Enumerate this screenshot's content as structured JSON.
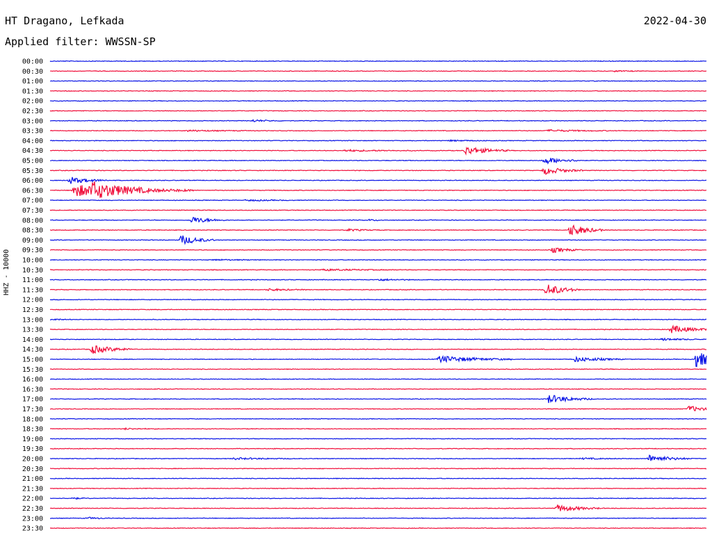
{
  "header": {
    "station": "HT Dragano, Lefkada",
    "date": "2022-04-30",
    "filter": "Applied filter: WWSSN-SP"
  },
  "colors": {
    "blue": "#0a14e6",
    "red": "#f0103c",
    "background": "#ffffff"
  },
  "chart_data": {
    "type": "line",
    "title": "HT Dragano, Lefkada",
    "subtitle": "Applied filter: WWSSN-SP",
    "ylabel": "HHZ - 10000",
    "xlabel": "",
    "grid": false,
    "minutes_per_line": 30,
    "series_colors": [
      "#0a14e6",
      "#f0103c"
    ],
    "trace_labels": [
      "00:00",
      "00:30",
      "01:00",
      "01:30",
      "02:00",
      "02:30",
      "03:00",
      "03:30",
      "04:00",
      "04:30",
      "05:00",
      "05:30",
      "06:00",
      "06:30",
      "07:00",
      "07:30",
      "08:00",
      "08:30",
      "09:00",
      "09:30",
      "10:00",
      "10:30",
      "11:00",
      "11:30",
      "12:00",
      "12:30",
      "13:00",
      "13:30",
      "14:00",
      "14:30",
      "15:00",
      "15:30",
      "16:00",
      "16:30",
      "17:00",
      "17:30",
      "18:00",
      "18:30",
      "19:00",
      "19:30",
      "20:00",
      "20:30",
      "21:00",
      "21:30",
      "22:00",
      "22:30",
      "23:00",
      "23:30"
    ],
    "events": [
      {
        "trace": 1,
        "minute": 25.8,
        "amplitude": 0.3,
        "duration": 0.6
      },
      {
        "trace": 6,
        "minute": 9.3,
        "amplitude": 0.6,
        "duration": 0.6
      },
      {
        "trace": 7,
        "minute": 6.3,
        "amplitude": 0.4,
        "duration": 1.2
      },
      {
        "trace": 7,
        "minute": 22.8,
        "amplitude": 0.5,
        "duration": 1.4
      },
      {
        "trace": 8,
        "minute": 18.3,
        "amplitude": 0.3,
        "duration": 1.0
      },
      {
        "trace": 9,
        "minute": 19.0,
        "amplitude": 2.5,
        "duration": 0.9
      },
      {
        "trace": 9,
        "minute": 13.5,
        "amplitude": 0.5,
        "duration": 1.5
      },
      {
        "trace": 10,
        "minute": 22.6,
        "amplitude": 2.0,
        "duration": 0.8
      },
      {
        "trace": 11,
        "minute": 22.6,
        "amplitude": 2.2,
        "duration": 0.8
      },
      {
        "trace": 12,
        "minute": 0.9,
        "amplitude": 2.0,
        "duration": 0.8
      },
      {
        "trace": 13,
        "minute": 1.1,
        "amplitude": 3.5,
        "duration": 2.5
      },
      {
        "trace": 13,
        "minute": 1.9,
        "amplitude": 3.0,
        "duration": 1.2
      },
      {
        "trace": 14,
        "minute": 9.0,
        "amplitude": 0.4,
        "duration": 1.0
      },
      {
        "trace": 16,
        "minute": 6.5,
        "amplitude": 2.0,
        "duration": 0.7
      },
      {
        "trace": 16,
        "minute": 14.6,
        "amplitude": 0.4,
        "duration": 0.4
      },
      {
        "trace": 17,
        "minute": 23.8,
        "amplitude": 3.5,
        "duration": 0.7
      },
      {
        "trace": 17,
        "minute": 13.6,
        "amplitude": 0.6,
        "duration": 0.7
      },
      {
        "trace": 18,
        "minute": 6.0,
        "amplitude": 2.8,
        "duration": 0.7
      },
      {
        "trace": 19,
        "minute": 23.0,
        "amplitude": 1.5,
        "duration": 0.6
      },
      {
        "trace": 20,
        "minute": 7.5,
        "amplitude": 0.3,
        "duration": 1.0
      },
      {
        "trace": 21,
        "minute": 12.5,
        "amplitude": 0.5,
        "duration": 1.5
      },
      {
        "trace": 22,
        "minute": 15.0,
        "amplitude": 0.5,
        "duration": 0.8
      },
      {
        "trace": 23,
        "minute": 22.7,
        "amplitude": 3.5,
        "duration": 0.7
      },
      {
        "trace": 23,
        "minute": 10.0,
        "amplitude": 0.6,
        "duration": 0.8
      },
      {
        "trace": 26,
        "minute": 0.1,
        "amplitude": 0.4,
        "duration": 0.4
      },
      {
        "trace": 27,
        "minute": 28.4,
        "amplitude": 2.2,
        "duration": 0.9
      },
      {
        "trace": 28,
        "minute": 28.0,
        "amplitude": 0.6,
        "duration": 0.8
      },
      {
        "trace": 29,
        "minute": 1.9,
        "amplitude": 2.5,
        "duration": 0.9
      },
      {
        "trace": 30,
        "minute": 17.8,
        "amplitude": 2.0,
        "duration": 1.5
      },
      {
        "trace": 30,
        "minute": 24.0,
        "amplitude": 1.5,
        "duration": 1.0
      },
      {
        "trace": 30,
        "minute": 29.5,
        "amplitude": 4.5,
        "duration": 1.0
      },
      {
        "trace": 34,
        "minute": 22.8,
        "amplitude": 2.5,
        "duration": 0.9
      },
      {
        "trace": 35,
        "minute": 29.2,
        "amplitude": 1.8,
        "duration": 0.6
      },
      {
        "trace": 37,
        "minute": 3.4,
        "amplitude": 0.4,
        "duration": 0.7
      },
      {
        "trace": 40,
        "minute": 8.4,
        "amplitude": 0.5,
        "duration": 1.3
      },
      {
        "trace": 40,
        "minute": 24.3,
        "amplitude": 0.4,
        "duration": 0.9
      },
      {
        "trace": 40,
        "minute": 27.4,
        "amplitude": 2.0,
        "duration": 0.9
      },
      {
        "trace": 44,
        "minute": 1.0,
        "amplitude": 0.5,
        "duration": 0.4
      },
      {
        "trace": 45,
        "minute": 23.2,
        "amplitude": 2.0,
        "duration": 0.9
      },
      {
        "trace": 46,
        "minute": 1.8,
        "amplitude": 0.5,
        "duration": 0.4
      }
    ]
  }
}
